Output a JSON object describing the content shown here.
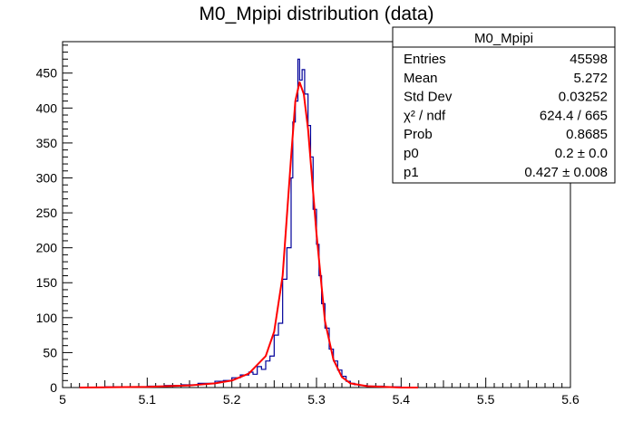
{
  "chart_data": {
    "type": "histogram",
    "title": "M0_Mpipi distribution (data)",
    "xlim": [
      5.0,
      5.6
    ],
    "ylim": [
      0,
      495
    ],
    "x_ticks": [
      "5",
      "5.1",
      "5.2",
      "5.3",
      "5.4",
      "5.5",
      "5.6"
    ],
    "y_ticks": [
      "0",
      "50",
      "100",
      "150",
      "200",
      "250",
      "300",
      "350",
      "400",
      "450"
    ],
    "x_tick_values": [
      5.0,
      5.1,
      5.2,
      5.3,
      5.4,
      5.5,
      5.6
    ],
    "y_tick_values": [
      0,
      50,
      100,
      150,
      200,
      250,
      300,
      350,
      400,
      450
    ],
    "histogram_color": "#000099",
    "fit_color": "#ff0000",
    "histogram_points": [
      [
        5.02,
        0
      ],
      [
        5.05,
        1
      ],
      [
        5.08,
        1
      ],
      [
        5.1,
        2
      ],
      [
        5.12,
        3
      ],
      [
        5.14,
        4
      ],
      [
        5.16,
        6
      ],
      [
        5.18,
        9
      ],
      [
        5.19,
        10
      ],
      [
        5.2,
        14
      ],
      [
        5.21,
        18
      ],
      [
        5.22,
        22
      ],
      [
        5.225,
        19
      ],
      [
        5.23,
        30
      ],
      [
        5.235,
        26
      ],
      [
        5.24,
        38
      ],
      [
        5.245,
        45
      ],
      [
        5.25,
        75
      ],
      [
        5.255,
        92
      ],
      [
        5.26,
        155
      ],
      [
        5.265,
        200
      ],
      [
        5.27,
        300
      ],
      [
        5.272,
        380
      ],
      [
        5.275,
        410
      ],
      [
        5.278,
        470
      ],
      [
        5.28,
        440
      ],
      [
        5.283,
        455
      ],
      [
        5.286,
        420
      ],
      [
        5.29,
        375
      ],
      [
        5.293,
        330
      ],
      [
        5.296,
        255
      ],
      [
        5.3,
        205
      ],
      [
        5.303,
        160
      ],
      [
        5.306,
        120
      ],
      [
        5.31,
        85
      ],
      [
        5.315,
        55
      ],
      [
        5.32,
        38
      ],
      [
        5.325,
        25
      ],
      [
        5.33,
        16
      ],
      [
        5.335,
        9
      ],
      [
        5.34,
        6
      ],
      [
        5.345,
        4
      ],
      [
        5.35,
        3
      ],
      [
        5.36,
        2
      ],
      [
        5.38,
        1
      ],
      [
        5.4,
        0
      ],
      [
        5.42,
        0
      ]
    ],
    "fit_points": [
      [
        5.02,
        0
      ],
      [
        5.1,
        1
      ],
      [
        5.15,
        3
      ],
      [
        5.18,
        6
      ],
      [
        5.2,
        10
      ],
      [
        5.22,
        20
      ],
      [
        5.24,
        45
      ],
      [
        5.25,
        80
      ],
      [
        5.26,
        160
      ],
      [
        5.27,
        330
      ],
      [
        5.275,
        410
      ],
      [
        5.28,
        437
      ],
      [
        5.285,
        420
      ],
      [
        5.29,
        370
      ],
      [
        5.3,
        220
      ],
      [
        5.31,
        95
      ],
      [
        5.32,
        40
      ],
      [
        5.33,
        15
      ],
      [
        5.34,
        6
      ],
      [
        5.36,
        2
      ],
      [
        5.4,
        0
      ],
      [
        5.42,
        0
      ]
    ],
    "stats_box": {
      "title": "M0_Mpipi",
      "rows": [
        {
          "label": "Entries",
          "value": "45598"
        },
        {
          "label": "Mean",
          "value": "5.272"
        },
        {
          "label": "Std Dev",
          "value": "0.03252"
        },
        {
          "label": "χ² / ndf",
          "value": "624.4 / 665"
        },
        {
          "label": "Prob",
          "value": "0.8685"
        },
        {
          "label": "p0",
          "value": "0.2 ± 0.0"
        },
        {
          "label": "p1",
          "value": "0.427 ± 0.008"
        }
      ]
    }
  }
}
